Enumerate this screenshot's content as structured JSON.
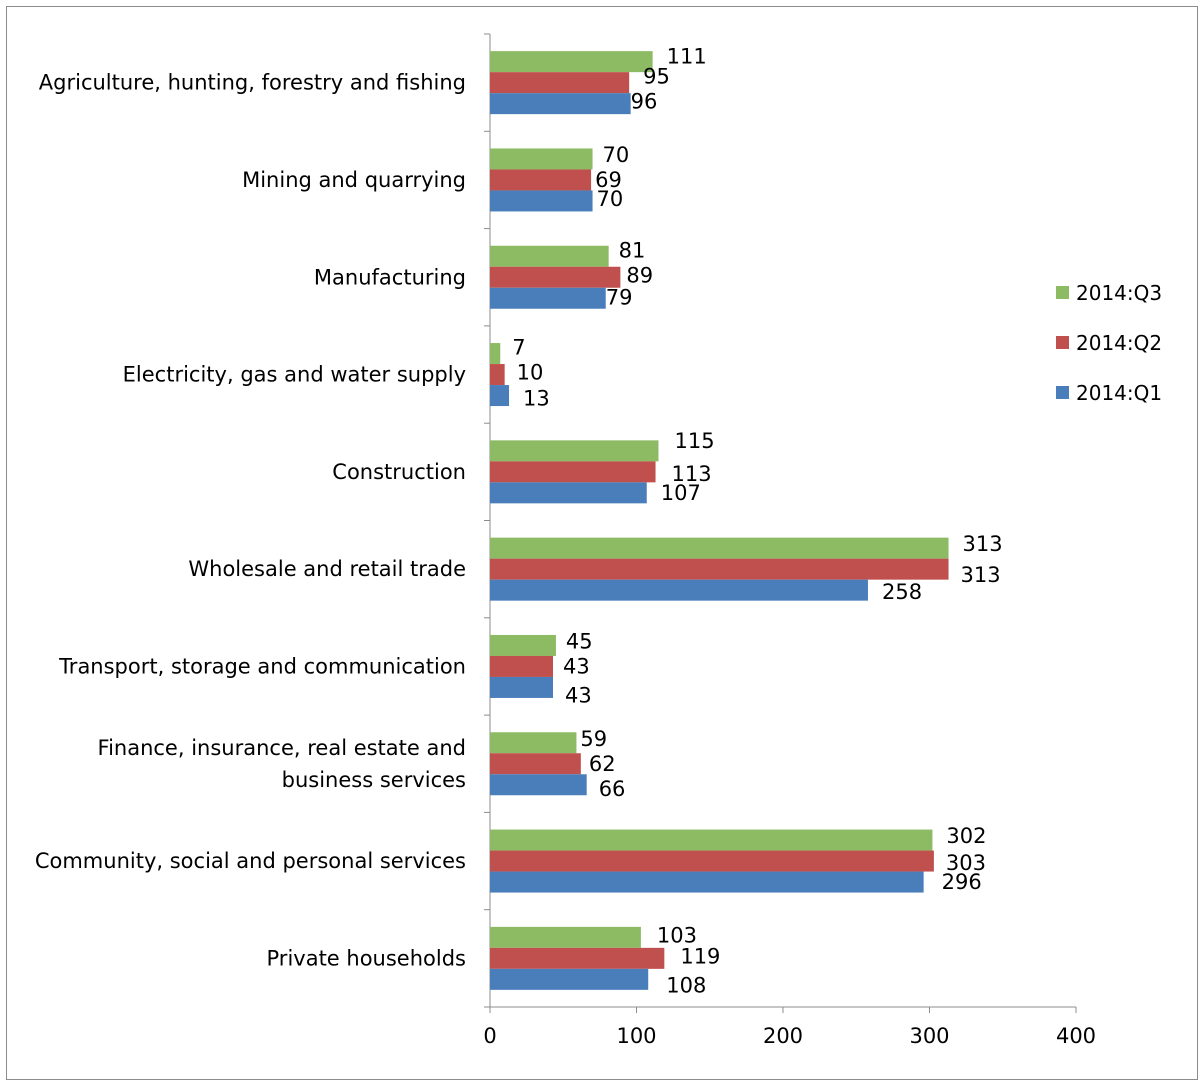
{
  "chart_data": {
    "type": "bar",
    "orientation": "horizontal",
    "categories": [
      [
        "Agriculture, hunting, forestry and fishing"
      ],
      [
        "Mining and quarrying"
      ],
      [
        "Manufacturing"
      ],
      [
        "Electricity, gas and water supply"
      ],
      [
        "Construction"
      ],
      [
        "Wholesale and retail trade"
      ],
      [
        "Transport, storage and communication"
      ],
      [
        "Finance, insurance, real estate and",
        "business services"
      ],
      [
        "Community, social and personal services"
      ],
      [
        "Private households"
      ]
    ],
    "series": [
      {
        "name": "2014:Q3",
        "color": "#8cbb63",
        "values": [
          111,
          70,
          81,
          7,
          115,
          313,
          45,
          59,
          302,
          103
        ]
      },
      {
        "name": "2014:Q2",
        "color": "#c0504d",
        "values": [
          95,
          69,
          89,
          10,
          113,
          313,
          43,
          62,
          303,
          119
        ]
      },
      {
        "name": "2014:Q1",
        "color": "#4a7ebb",
        "values": [
          96,
          70,
          79,
          13,
          107,
          258,
          43,
          66,
          296,
          108
        ]
      }
    ],
    "xlim": [
      0,
      400
    ],
    "xticks": [
      0,
      100,
      200,
      300,
      400
    ],
    "grid": false,
    "legend": "right",
    "title": "",
    "xlabel": "",
    "ylabel": ""
  }
}
